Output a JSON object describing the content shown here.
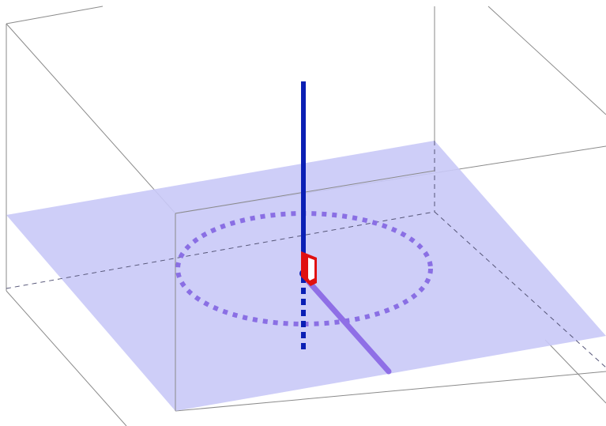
{
  "scene": {
    "type": "3d-geometry-view",
    "objects": [
      "bounding-box",
      "plane",
      "vertical-line",
      "perpendicular-segment",
      "dashed-circle",
      "right-angle-marker"
    ],
    "colors": {
      "background": "#ffffff",
      "box_edge": "#8a8a8a",
      "plane_fill": "#c9c9f7",
      "vertical_line": "#0a1fb4",
      "segment": "#8f6fe6",
      "circle": "#8a6fe4",
      "right_angle_marker": "#e01010"
    }
  }
}
